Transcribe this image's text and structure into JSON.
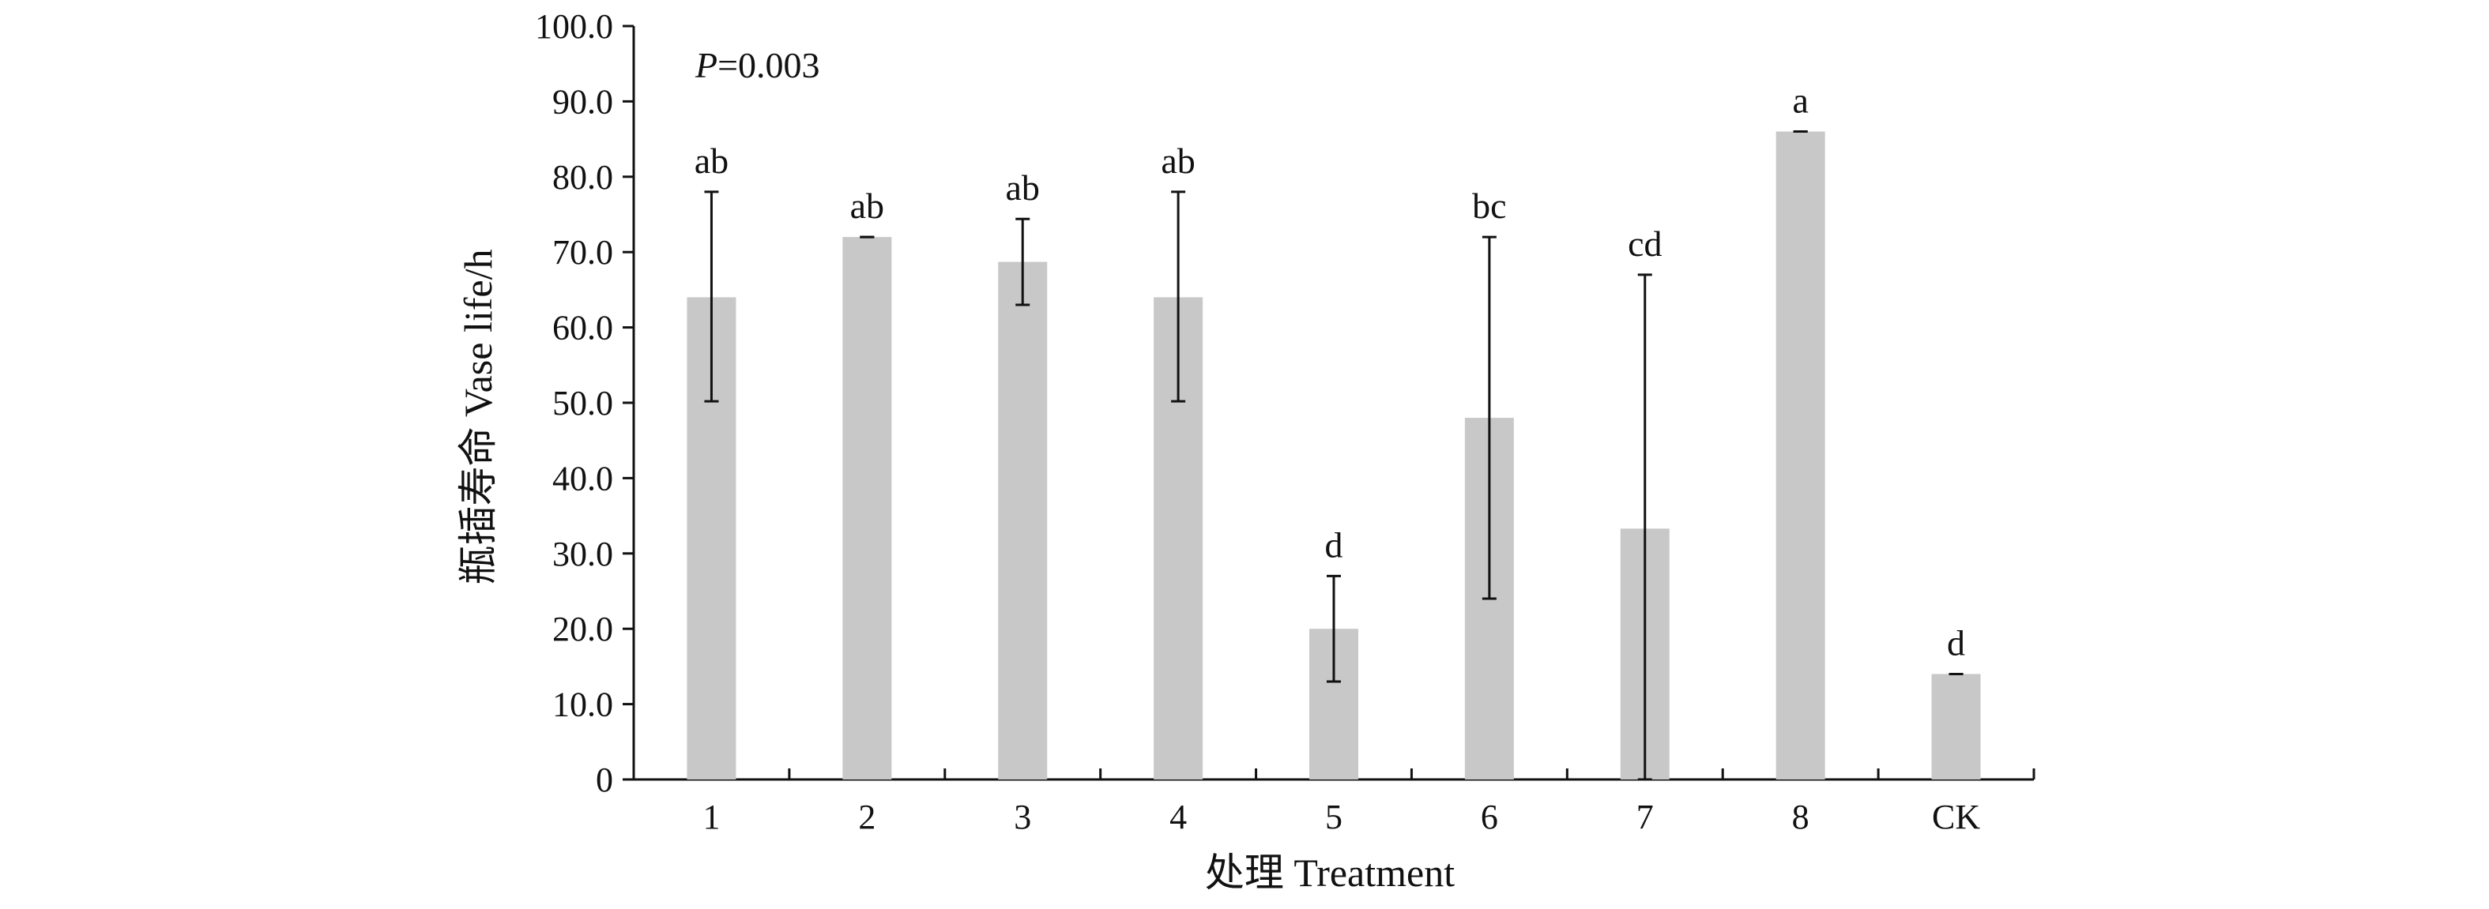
{
  "chart_data": {
    "type": "bar",
    "categories": [
      "1",
      "2",
      "3",
      "4",
      "5",
      "6",
      "7",
      "8",
      "CK"
    ],
    "series": [
      {
        "values": [
          64,
          72,
          68.7,
          64,
          20,
          48,
          33.3,
          86,
          14
        ],
        "error_low": [
          50.2,
          72,
          63,
          50.2,
          13,
          24,
          0,
          86,
          14
        ],
        "error_high": [
          78,
          72,
          74.4,
          78,
          27,
          72,
          67,
          86,
          14
        ]
      }
    ],
    "significance_labels": [
      "ab",
      "ab",
      "ab",
      "ab",
      "d",
      "bc",
      "cd",
      "a",
      "d"
    ],
    "annotation": "=0.003",
    "annotation_italic": "P",
    "xlabel": "处理 Treatment",
    "ylabel": "瓶插寿命 Vase life/h",
    "ylim": [
      0,
      100
    ],
    "yticks": [
      "0",
      "10.0",
      "20.0",
      "30.0",
      "40.0",
      "50.0",
      "60.0",
      "70.0",
      "80.0",
      "90.0",
      "100.0"
    ],
    "grid": false,
    "legend": "none",
    "bar_color": "#c8c8c8",
    "axis_color": "#111111"
  }
}
